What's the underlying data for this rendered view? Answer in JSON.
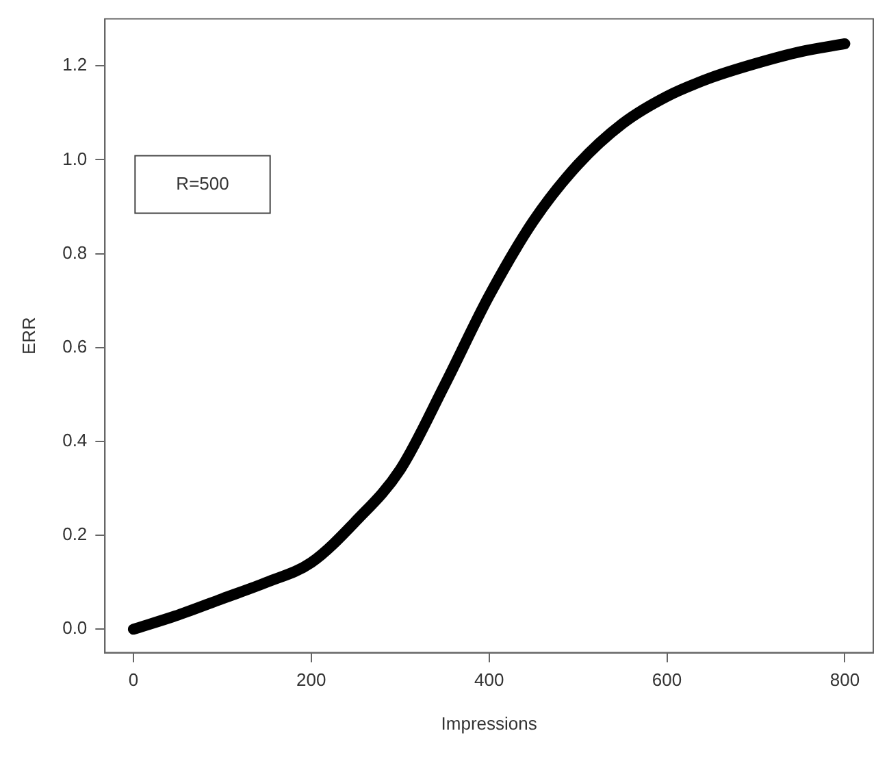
{
  "chart_data": {
    "type": "line",
    "xlabel": "Impressions",
    "ylabel": "ERR",
    "x": [
      0,
      50,
      100,
      150,
      200,
      250,
      300,
      350,
      400,
      450,
      500,
      550,
      600,
      650,
      700,
      750,
      800
    ],
    "series": [
      {
        "color": "#000000",
        "values": [
          0,
          0.03,
          0.065,
          0.1,
          0.142,
          0.23,
          0.34,
          0.52,
          0.71,
          0.87,
          0.99,
          1.077,
          1.135,
          1.175,
          1.205,
          1.23,
          1.247
        ]
      }
    ],
    "xlim": [
      -32,
      832
    ],
    "ylim": [
      -0.05,
      1.3
    ],
    "xticks": [
      0,
      200,
      400,
      600,
      800
    ],
    "yticks": [
      {
        "value": 0,
        "label": "0.0"
      },
      0.2,
      0.4,
      0.6,
      0.8,
      {
        "value": 1,
        "label": "1.0"
      },
      1.2
    ],
    "annotations": [
      "R=500"
    ],
    "grid": false,
    "legend": false,
    "marker": "none",
    "line_style": "solid"
  }
}
